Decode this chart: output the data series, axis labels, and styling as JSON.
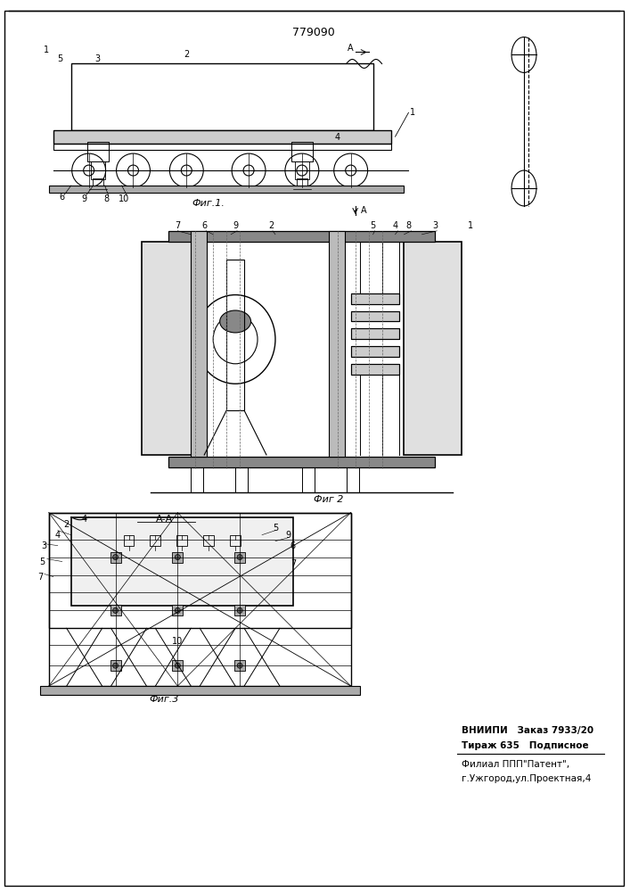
{
  "patent_number": "779090",
  "background_color": "#ffffff",
  "line_color": "#000000",
  "fig1_caption": "Фиг.1.",
  "fig2_caption": "Фиг 2",
  "fig3_caption": "Фиг.3",
  "info_line1": "ВНИИПИ   Заказ 7933/20",
  "info_line2": "Тираж 635   Подписное",
  "info_line3": "Филиал ППП\"Патент\",",
  "info_line4": "г.Ужгород,ул.Проектная,4",
  "section_label": "А-А"
}
